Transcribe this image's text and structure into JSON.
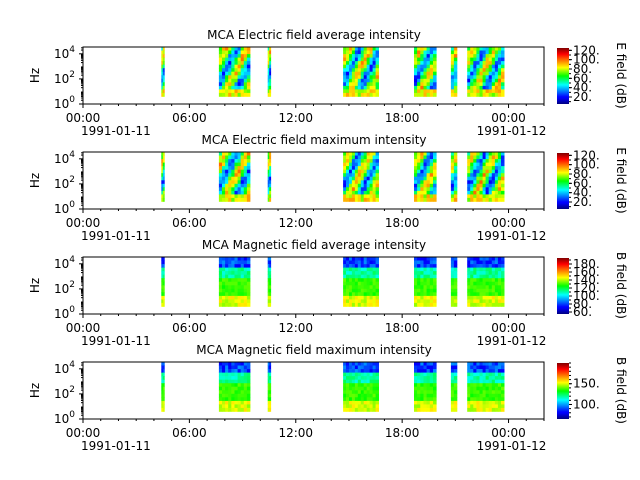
{
  "chart_data": [
    {
      "type": "heatmap",
      "title": "MCA  Electric field average intensity",
      "ylabel": "Hz",
      "y_scale": "log",
      "y_ticks": [
        {
          "exp": "0",
          "value": 1
        },
        {
          "exp": "2",
          "value": 100
        },
        {
          "exp": "4",
          "value": 10000
        }
      ],
      "ylim": [
        1,
        35000
      ],
      "x_ticks": [
        "00:00",
        "06:00",
        "12:00",
        "18:00",
        "00:00"
      ],
      "x_dates": [
        "1991-01-11",
        "1991-01-12"
      ],
      "xlim": [
        "1991-01-11T00:00",
        "1991-01-12T02:00"
      ],
      "colorbar": {
        "label": "E field (dB)",
        "range": [
          5,
          125
        ],
        "ticks": [
          "20.",
          "40.",
          "60.",
          "80.",
          "100.",
          "120."
        ],
        "tick_values": [
          20,
          40,
          60,
          80,
          100,
          120
        ]
      },
      "style": "electric",
      "data_intervals": [
        [
          "04:25",
          "04:35"
        ],
        [
          "07:40",
          "09:25"
        ],
        [
          "10:25",
          "10:35"
        ],
        [
          "14:40",
          "16:40"
        ],
        [
          "18:40",
          "19:55"
        ],
        [
          "20:45",
          "21:05"
        ],
        [
          "21:40",
          "23:45"
        ]
      ]
    },
    {
      "type": "heatmap",
      "title": "MCA  Electric field maximum intensity",
      "ylabel": "Hz",
      "y_scale": "log",
      "y_ticks": [
        {
          "exp": "0",
          "value": 1
        },
        {
          "exp": "2",
          "value": 100
        },
        {
          "exp": "4",
          "value": 10000
        }
      ],
      "ylim": [
        1,
        35000
      ],
      "x_ticks": [
        "00:00",
        "06:00",
        "12:00",
        "18:00",
        "00:00"
      ],
      "x_dates": [
        "1991-01-11",
        "1991-01-12"
      ],
      "xlim": [
        "1991-01-11T00:00",
        "1991-01-12T02:00"
      ],
      "colorbar": {
        "label": "E field (dB)",
        "range": [
          5,
          125
        ],
        "ticks": [
          "20.",
          "40.",
          "60.",
          "80.",
          "100.",
          "120."
        ],
        "tick_values": [
          20,
          40,
          60,
          80,
          100,
          120
        ]
      },
      "style": "electric",
      "data_intervals": [
        [
          "04:25",
          "04:35"
        ],
        [
          "07:40",
          "09:25"
        ],
        [
          "10:25",
          "10:35"
        ],
        [
          "14:40",
          "16:40"
        ],
        [
          "18:40",
          "19:55"
        ],
        [
          "20:45",
          "21:05"
        ],
        [
          "21:40",
          "23:45"
        ]
      ]
    },
    {
      "type": "heatmap",
      "title": "MCA  Magnetic field average intensity",
      "ylabel": "Hz",
      "y_scale": "log",
      "y_ticks": [
        {
          "exp": "0",
          "value": 1
        },
        {
          "exp": "2",
          "value": 100
        },
        {
          "exp": "4",
          "value": 10000
        }
      ],
      "ylim": [
        1,
        35000
      ],
      "x_ticks": [
        "00:00",
        "06:00",
        "12:00",
        "18:00",
        "00:00"
      ],
      "x_dates": [
        "1991-01-11",
        "1991-01-12"
      ],
      "xlim": [
        "1991-01-11T00:00",
        "1991-01-12T02:00"
      ],
      "colorbar": {
        "label": "B field (dB)",
        "range": [
          55,
          195
        ],
        "ticks": [
          "60.",
          "80.",
          "100.",
          "120.",
          "140.",
          "160.",
          "180."
        ],
        "tick_values": [
          60,
          80,
          100,
          120,
          140,
          160,
          180
        ]
      },
      "style": "magnetic",
      "data_intervals": [
        [
          "04:25",
          "04:35"
        ],
        [
          "07:40",
          "09:25"
        ],
        [
          "10:25",
          "10:35"
        ],
        [
          "14:40",
          "16:40"
        ],
        [
          "18:40",
          "19:55"
        ],
        [
          "20:45",
          "21:05"
        ],
        [
          "21:40",
          "23:45"
        ]
      ]
    },
    {
      "type": "heatmap",
      "title": "MCA  Magnetic field maximum intensity",
      "ylabel": "Hz",
      "y_scale": "log",
      "y_ticks": [
        {
          "exp": "0",
          "value": 1
        },
        {
          "exp": "2",
          "value": 100
        },
        {
          "exp": "4",
          "value": 10000
        }
      ],
      "ylim": [
        1,
        35000
      ],
      "x_ticks": [
        "00:00",
        "06:00",
        "12:00",
        "18:00",
        "00:00"
      ],
      "x_dates": [
        "1991-01-11",
        "1991-01-12"
      ],
      "xlim": [
        "1991-01-11T00:00",
        "1991-01-12T02:00"
      ],
      "colorbar": {
        "label": "B field (dB)",
        "range": [
          65,
          200
        ],
        "ticks": [
          "100.",
          "150."
        ],
        "tick_values": [
          100,
          150
        ]
      },
      "style": "magnetic",
      "data_intervals": [
        [
          "04:25",
          "04:35"
        ],
        [
          "07:40",
          "09:25"
        ],
        [
          "10:25",
          "10:35"
        ],
        [
          "14:40",
          "16:40"
        ],
        [
          "18:40",
          "19:55"
        ],
        [
          "20:45",
          "21:05"
        ],
        [
          "21:40",
          "23:45"
        ]
      ]
    }
  ]
}
